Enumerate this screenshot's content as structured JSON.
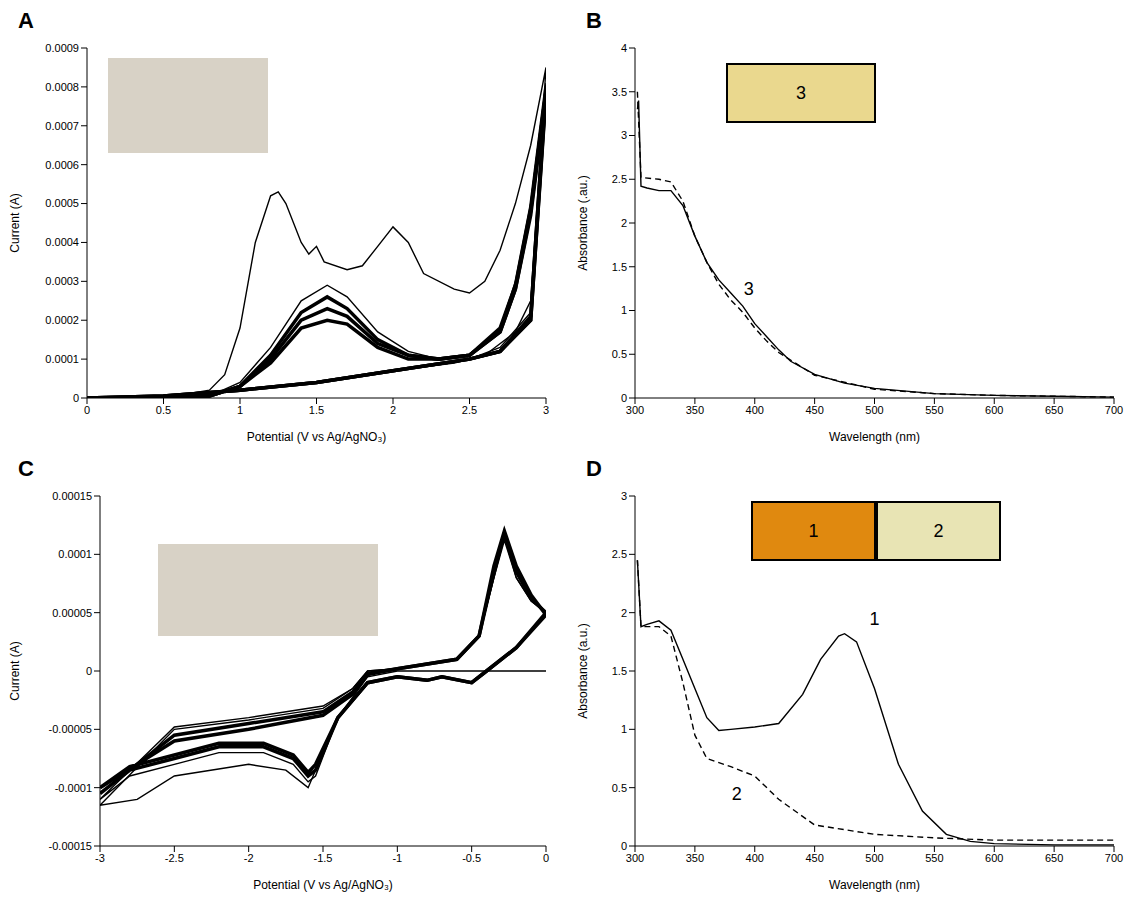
{
  "chart_data": [
    {
      "panel": "A",
      "type": "line",
      "x_label": "Potential (V vs Ag/AgNO₃)",
      "y_label": "Current (A)",
      "xlim": [
        0,
        3
      ],
      "xticks": [
        0,
        0.5,
        1,
        1.5,
        2,
        2.5,
        3
      ],
      "ylim": [
        0,
        0.0009
      ],
      "yticks": [
        0,
        0.0001,
        0.0002,
        0.0003,
        0.0004,
        0.0005,
        0.0006,
        0.0007,
        0.0008,
        0.0009
      ],
      "series": [
        {
          "color": "#000000",
          "line_style": "solid",
          "x": [
            0,
            0.5,
            0.8,
            0.9,
            1.0,
            1.1,
            1.2,
            1.25,
            1.3,
            1.4,
            1.45,
            1.5,
            1.55,
            1.7,
            1.8,
            1.9,
            2.0,
            2.1,
            2.2,
            2.4,
            2.5,
            2.6,
            2.7,
            2.8,
            2.9,
            3.0,
            2.9,
            2.8,
            2.6,
            2.4,
            2.0,
            1.5,
            1.0,
            0.5,
            0
          ],
          "values": [
            0,
            0,
            2e-05,
            6e-05,
            0.00018,
            0.0004,
            0.00052,
            0.00053,
            0.0005,
            0.0004,
            0.00037,
            0.00039,
            0.00035,
            0.00033,
            0.00034,
            0.00039,
            0.00044,
            0.0004,
            0.00032,
            0.00028,
            0.00027,
            0.0003,
            0.00038,
            0.0005,
            0.00065,
            0.00085,
            0.00025,
            0.00017,
            0.00011,
            9e-05,
            7e-05,
            4e-05,
            2e-05,
            5e-06,
            0
          ]
        },
        {
          "color": "#000000",
          "line_style": "solid",
          "x": [
            0,
            0.8,
            1.0,
            1.2,
            1.4,
            1.57,
            1.7,
            1.9,
            2.1,
            2.3,
            2.5,
            2.7,
            2.8,
            2.9,
            3.0,
            2.9,
            2.7,
            2.5,
            2.0,
            1.5,
            1.0,
            0.5,
            0
          ],
          "values": [
            0,
            5e-06,
            4e-05,
            0.00013,
            0.00025,
            0.00029,
            0.00026,
            0.00017,
            0.00012,
            0.0001,
            0.00011,
            0.00018,
            0.0003,
            0.0005,
            0.00081,
            0.00022,
            0.00013,
            0.0001,
            7e-05,
            4e-05,
            2e-05,
            5e-06,
            0
          ]
        },
        {
          "color": "#000000",
          "line_style": "solid",
          "x": [
            0,
            0.8,
            1.0,
            1.2,
            1.4,
            1.57,
            1.7,
            1.9,
            2.1,
            2.3,
            2.5,
            2.7,
            2.8,
            2.9,
            3.0,
            2.9,
            2.7,
            2.5,
            2.0,
            1.5,
            1.0,
            0.5,
            0
          ],
          "values": [
            0,
            5e-06,
            3e-05,
            0.00011,
            0.00022,
            0.00026,
            0.00023,
            0.00015,
            0.00011,
            0.0001,
            0.00011,
            0.00018,
            0.00029,
            0.00049,
            0.0008,
            0.00021,
            0.00012,
            0.0001,
            7e-05,
            4e-05,
            2e-05,
            5e-06,
            0
          ]
        },
        {
          "color": "#000000",
          "line_style": "solid",
          "x": [
            0,
            0.8,
            1.0,
            1.2,
            1.4,
            1.57,
            1.7,
            1.9,
            2.1,
            2.3,
            2.5,
            2.7,
            2.8,
            2.9,
            3.0,
            2.9,
            2.7,
            2.5,
            2.0,
            1.5,
            1.0,
            0.5,
            0
          ],
          "values": [
            0,
            5e-06,
            3e-05,
            0.0001,
            0.0002,
            0.00023,
            0.00021,
            0.00014,
            0.00011,
            0.0001,
            0.00011,
            0.00017,
            0.00028,
            0.00048,
            0.00079,
            0.0002,
            0.00012,
            0.0001,
            7e-05,
            4e-05,
            2e-05,
            5e-06,
            0
          ]
        },
        {
          "color": "#000000",
          "line_style": "solid",
          "x": [
            0,
            0.8,
            1.0,
            1.2,
            1.4,
            1.57,
            1.7,
            1.9,
            2.1,
            2.3,
            2.5,
            2.7,
            2.8,
            2.9,
            3.0,
            2.9,
            2.7,
            2.5,
            2.0,
            1.5,
            1.0,
            0.5,
            0
          ],
          "values": [
            0,
            5e-06,
            3e-05,
            9e-05,
            0.00018,
            0.0002,
            0.00019,
            0.00013,
            0.0001,
            0.0001,
            0.00011,
            0.00017,
            0.00028,
            0.00047,
            0.00078,
            0.0002,
            0.00012,
            0.0001,
            7e-05,
            4e-05,
            2e-05,
            5e-06,
            0
          ]
        }
      ],
      "annotations": [],
      "insets": [
        {
          "color": "#d8d2c6"
        }
      ]
    },
    {
      "panel": "B",
      "type": "line",
      "x_label": "Wavelength (nm)",
      "y_label": "Absorbance (.au.)",
      "xlim": [
        300,
        700
      ],
      "xticks": [
        300,
        350,
        400,
        450,
        500,
        550,
        600,
        650,
        700
      ],
      "ylim": [
        0,
        4
      ],
      "yticks": [
        0,
        0.5,
        1,
        1.5,
        2,
        2.5,
        3,
        3.5,
        4
      ],
      "series": [
        {
          "color": "#000000",
          "line_style": "solid",
          "x": [
            302,
            303,
            305,
            310,
            320,
            330,
            340,
            350,
            360,
            370,
            380,
            390,
            400,
            410,
            420,
            430,
            450,
            475,
            500,
            550,
            600,
            650,
            700
          ],
          "values": [
            3.3,
            3.4,
            2.42,
            2.4,
            2.37,
            2.37,
            2.2,
            1.85,
            1.55,
            1.35,
            1.2,
            1.05,
            0.85,
            0.7,
            0.55,
            0.42,
            0.27,
            0.17,
            0.11,
            0.05,
            0.03,
            0.02,
            0.01
          ]
        },
        {
          "color": "#000000",
          "line_style": "dashed",
          "x": [
            302,
            305,
            320,
            330,
            340,
            350,
            360,
            370,
            380,
            390,
            400,
            410,
            420,
            450,
            500,
            550,
            600,
            700
          ],
          "values": [
            3.5,
            2.52,
            2.5,
            2.47,
            2.25,
            1.85,
            1.55,
            1.3,
            1.12,
            0.98,
            0.8,
            0.65,
            0.52,
            0.26,
            0.1,
            0.05,
            0.03,
            0.01
          ]
        }
      ],
      "annotations": [
        {
          "text": "3",
          "x": 395,
          "y": 1.25
        }
      ],
      "insets": [
        {
          "label": "3",
          "color": "#ead88e"
        }
      ]
    },
    {
      "panel": "C",
      "type": "line",
      "x_label": "Potential (V vs Ag/AgNO₃)",
      "y_label": "Current (A)",
      "xlim": [
        -3,
        0
      ],
      "xticks": [
        -3,
        -2.5,
        -2,
        -1.5,
        -1,
        -0.5,
        0
      ],
      "ylim": [
        -0.00015,
        0.00015
      ],
      "yticks": [
        -0.00015,
        -0.0001,
        -5e-05,
        0,
        5e-05,
        0.0001,
        0.00015
      ],
      "series": [
        {
          "color": "#000000",
          "line_style": "solid",
          "x": [
            0,
            -0.5,
            -1.0,
            -1.2,
            -1.4,
            -1.6,
            -1.75,
            -2.0,
            -2.5,
            -2.75,
            -3.0,
            -2.5,
            -2.0,
            -1.5,
            -1.3,
            -1.2,
            -1.0,
            -0.6,
            -0.45,
            -0.35,
            -0.28,
            -0.2,
            -0.1,
            0
          ],
          "values": [
            0,
            0,
            0,
            -5e-06,
            -4e-05,
            -0.0001,
            -8.5e-05,
            -8e-05,
            -9e-05,
            -0.00011,
            -0.000115,
            -5e-05,
            -4.2e-05,
            -3.2e-05,
            -1.5e-05,
            0,
            2e-06,
            1e-05,
            3e-05,
            8e-05,
            0.000115,
            8e-05,
            6e-05,
            5e-05
          ]
        },
        {
          "color": "#000000",
          "line_style": "solid",
          "x": [
            0,
            -0.2,
            -0.4,
            -0.5,
            -0.7,
            -0.8,
            -1.0,
            -1.2,
            -1.4,
            -1.55,
            -1.6,
            -1.7,
            -1.9,
            -2.2,
            -2.5,
            -2.8,
            -3.0,
            -2.5,
            -2.0,
            -1.5,
            -1.3,
            -1.2,
            -1.0,
            -0.6,
            -0.45,
            -0.35,
            -0.28,
            -0.2,
            -0.1,
            0
          ],
          "values": [
            5e-05,
            2e-05,
            0,
            -1e-05,
            -5e-06,
            -8e-06,
            -5e-06,
            -1e-05,
            -4e-05,
            -9e-05,
            -9.5e-05,
            -8e-05,
            -7e-05,
            -7e-05,
            -8e-05,
            -9e-05,
            -0.00011,
            -4.8e-05,
            -4e-05,
            -3e-05,
            -1.5e-05,
            0,
            2e-06,
            1e-05,
            3e-05,
            8e-05,
            0.000112,
            8e-05,
            6e-05,
            5e-05
          ]
        },
        {
          "color": "#000000",
          "line_style": "solid",
          "x": [
            0,
            -0.2,
            -0.4,
            -0.5,
            -0.7,
            -0.8,
            -1.0,
            -1.2,
            -1.4,
            -1.55,
            -1.6,
            -1.7,
            -1.9,
            -2.2,
            -2.5,
            -2.8,
            -3.0,
            -2.5,
            -2.0,
            -1.5,
            -1.3,
            -1.2,
            -1.0,
            -0.6,
            -0.45,
            -0.35,
            -0.28,
            -0.2,
            -0.1,
            0
          ],
          "values": [
            5e-05,
            2e-05,
            0,
            -1e-05,
            -5e-06,
            -8e-06,
            -5e-06,
            -1e-05,
            -4e-05,
            -8.5e-05,
            -9e-05,
            -7.5e-05,
            -6.5e-05,
            -6.5e-05,
            -7.5e-05,
            -8.5e-05,
            -0.000105,
            -5.5e-05,
            -4.5e-05,
            -3.5e-05,
            -1.8e-05,
            -2e-06,
            2e-06,
            1e-05,
            3e-05,
            8.5e-05,
            0.000118,
            8.5e-05,
            6.2e-05,
            5e-05
          ]
        },
        {
          "color": "#000000",
          "line_style": "solid",
          "x": [
            0,
            -0.2,
            -0.4,
            -0.5,
            -0.7,
            -0.8,
            -1.0,
            -1.2,
            -1.4,
            -1.55,
            -1.6,
            -1.7,
            -1.9,
            -2.2,
            -2.5,
            -2.8,
            -3.0,
            -2.5,
            -2.0,
            -1.5,
            -1.3,
            -1.2,
            -1.0,
            -0.6,
            -0.45,
            -0.35,
            -0.28,
            -0.2,
            -0.1,
            0
          ],
          "values": [
            4.8e-05,
            2e-05,
            0,
            -1e-05,
            -5e-06,
            -8e-06,
            -5e-06,
            -1e-05,
            -4e-05,
            -8e-05,
            -8.7e-05,
            -7.2e-05,
            -6.2e-05,
            -6.2e-05,
            -7.2e-05,
            -8.2e-05,
            -0.0001,
            -6e-05,
            -5e-05,
            -3.8e-05,
            -2e-05,
            -3e-06,
            2e-06,
            1e-05,
            3e-05,
            9e-05,
            0.00012,
            9e-05,
            6.5e-05,
            4.8e-05
          ]
        }
      ],
      "annotations": [],
      "insets": [
        {
          "color": "#d8d2c6"
        }
      ]
    },
    {
      "panel": "D",
      "type": "line",
      "x_label": "Wavelength (nm)",
      "y_label": "Absorbance (a.u.)",
      "xlim": [
        300,
        700
      ],
      "xticks": [
        300,
        350,
        400,
        450,
        500,
        550,
        600,
        650,
        700
      ],
      "ylim": [
        0,
        3
      ],
      "yticks": [
        0,
        0.5,
        1,
        1.5,
        2,
        2.5,
        3
      ],
      "series": [
        {
          "color": "#000000",
          "line_style": "solid",
          "x": [
            302,
            305,
            310,
            320,
            330,
            340,
            350,
            360,
            370,
            380,
            400,
            420,
            440,
            455,
            470,
            475,
            485,
            500,
            520,
            540,
            560,
            580,
            600,
            650,
            700
          ],
          "values": [
            2.45,
            1.88,
            1.9,
            1.93,
            1.85,
            1.6,
            1.35,
            1.1,
            0.99,
            1.0,
            1.02,
            1.05,
            1.3,
            1.6,
            1.8,
            1.82,
            1.75,
            1.35,
            0.7,
            0.3,
            0.1,
            0.04,
            0.02,
            0.01,
            0.01
          ]
        },
        {
          "color": "#000000",
          "line_style": "dashed",
          "x": [
            302,
            305,
            320,
            330,
            340,
            350,
            360,
            380,
            400,
            420,
            450,
            500,
            550,
            600,
            700
          ],
          "values": [
            2.45,
            1.88,
            1.88,
            1.8,
            1.4,
            0.95,
            0.75,
            0.68,
            0.6,
            0.4,
            0.18,
            0.1,
            0.07,
            0.05,
            0.05
          ]
        }
      ],
      "annotations": [
        {
          "text": "1",
          "x": 500,
          "y": 1.95
        },
        {
          "text": "2",
          "x": 385,
          "y": 0.45
        }
      ],
      "insets": [
        {
          "label": "1",
          "color": "#e0890f"
        },
        {
          "label": "2",
          "color": "#e8e4b4"
        }
      ]
    }
  ]
}
